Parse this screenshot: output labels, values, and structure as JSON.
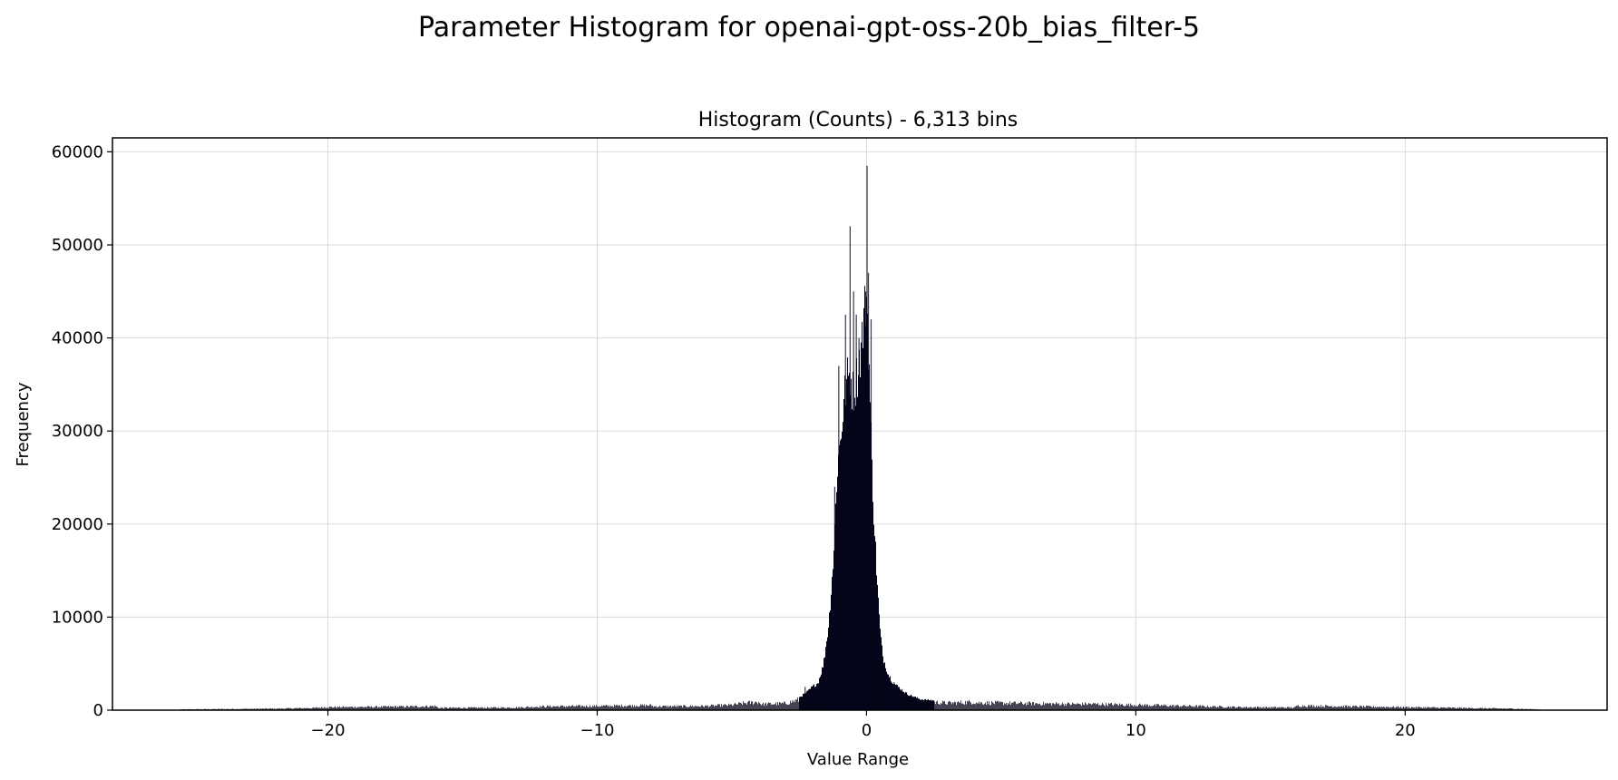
{
  "figure": {
    "suptitle": "Parameter Histogram for openai-gpt-oss-20b_bias_filter-5"
  },
  "chart_data": {
    "type": "bar",
    "title": "Histogram (Counts) - 6,313 bins",
    "xlabel": "Value Range",
    "ylabel": "Frequency",
    "bin_count": 6313,
    "xlim": [
      -28,
      27.5
    ],
    "ylim": [
      0,
      61500
    ],
    "xticks": [
      -20,
      -10,
      0,
      10,
      20
    ],
    "xtick_labels": [
      "−20",
      "−10",
      "0",
      "10",
      "20"
    ],
    "yticks": [
      0,
      10000,
      20000,
      30000,
      40000,
      50000,
      60000
    ],
    "ytick_labels": [
      "0",
      "10000",
      "20000",
      "30000",
      "40000",
      "50000",
      "60000"
    ],
    "grid": true,
    "bar_color": "#05051a",
    "points": [
      [
        -25.5,
        100
      ],
      [
        -24.0,
        150
      ],
      [
        -22.0,
        200
      ],
      [
        -20.5,
        300
      ],
      [
        -20.0,
        400
      ],
      [
        -18.0,
        450
      ],
      [
        -16.5,
        500
      ],
      [
        -16.0,
        550
      ],
      [
        -15.9,
        300
      ],
      [
        -13.0,
        350
      ],
      [
        -12.0,
        500
      ],
      [
        -10.0,
        550
      ],
      [
        -8.0,
        650
      ],
      [
        -7.9,
        500
      ],
      [
        -6.0,
        550
      ],
      [
        -5.0,
        700
      ],
      [
        -4.5,
        950
      ],
      [
        -4.0,
        1100
      ],
      [
        -3.9,
        800
      ],
      [
        -3.0,
        900
      ],
      [
        -2.5,
        1400
      ],
      [
        -2.2,
        2000
      ],
      [
        -2.0,
        2600
      ],
      [
        -1.8,
        3000
      ],
      [
        -1.6,
        5000
      ],
      [
        -1.4,
        9500
      ],
      [
        -1.2,
        18000
      ],
      [
        -1.1,
        26000
      ],
      [
        -1.0,
        29000
      ],
      [
        -0.9,
        32000
      ],
      [
        -0.8,
        35000
      ],
      [
        -0.7,
        36500
      ],
      [
        -0.6,
        37000
      ],
      [
        -0.5,
        35000
      ],
      [
        -0.4,
        36000
      ],
      [
        -0.3,
        38000
      ],
      [
        -0.2,
        40000
      ],
      [
        -0.1,
        43000
      ],
      [
        0.0,
        46000
      ],
      [
        0.1,
        38000
      ],
      [
        0.2,
        27000
      ],
      [
        0.3,
        20000
      ],
      [
        0.4,
        14000
      ],
      [
        0.5,
        9000
      ],
      [
        0.6,
        6000
      ],
      [
        0.8,
        4000
      ],
      [
        1.0,
        3000
      ],
      [
        1.5,
        1800
      ],
      [
        2.0,
        1200
      ],
      [
        3.0,
        950
      ],
      [
        4.0,
        1100
      ],
      [
        4.1,
        1000
      ],
      [
        6.0,
        900
      ],
      [
        8.0,
        800
      ],
      [
        8.1,
        850
      ],
      [
        10.0,
        700
      ],
      [
        12.0,
        550
      ],
      [
        14.0,
        400
      ],
      [
        15.9,
        350
      ],
      [
        16.0,
        600
      ],
      [
        18.0,
        500
      ],
      [
        20.0,
        400
      ],
      [
        22.0,
        300
      ],
      [
        24.0,
        200
      ],
      [
        25.0,
        100
      ]
    ],
    "spikes": [
      [
        -2.3,
        2500
      ],
      [
        -1.5,
        6500
      ],
      [
        -1.3,
        11000
      ],
      [
        -1.2,
        24000
      ],
      [
        -1.05,
        37000
      ],
      [
        -0.8,
        42500
      ],
      [
        -0.63,
        52000
      ],
      [
        -0.5,
        45000
      ],
      [
        -0.4,
        42500
      ],
      [
        -0.3,
        40000
      ],
      [
        -0.2,
        38000
      ],
      [
        -0.05,
        45000
      ],
      [
        0.0,
        58500
      ],
      [
        0.05,
        47000
      ],
      [
        0.15,
        42000
      ],
      [
        0.8,
        3200
      ],
      [
        1.0,
        3000
      ]
    ]
  }
}
